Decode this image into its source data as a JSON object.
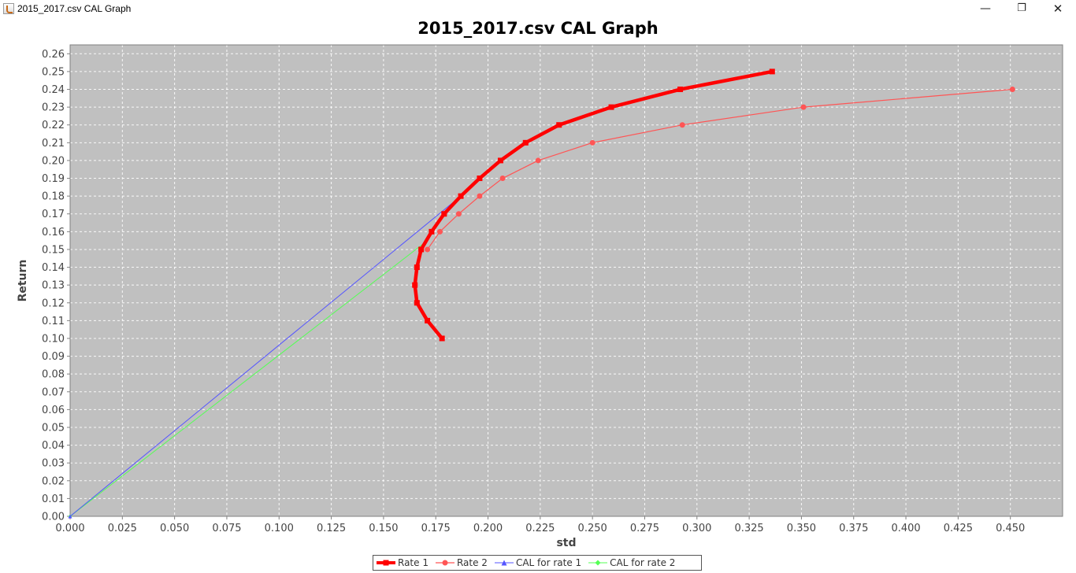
{
  "window": {
    "title": "2015_2017.csv CAL Graph",
    "minimize_glyph": "—",
    "maximize_glyph": "❐",
    "close_glyph": "✕"
  },
  "chart_data": {
    "type": "line",
    "title": "2015_2017.csv CAL Graph",
    "xlabel": "std",
    "ylabel": "Return",
    "xlim": [
      0,
      0.475
    ],
    "ylim": [
      0,
      0.265
    ],
    "xticks": [
      "0.000",
      "0.025",
      "0.050",
      "0.075",
      "0.100",
      "0.125",
      "0.150",
      "0.175",
      "0.200",
      "0.225",
      "0.250",
      "0.275",
      "0.300",
      "0.325",
      "0.350",
      "0.375",
      "0.400",
      "0.425",
      "0.450"
    ],
    "yticks": [
      "0.00",
      "0.01",
      "0.02",
      "0.03",
      "0.04",
      "0.05",
      "0.06",
      "0.07",
      "0.08",
      "0.09",
      "0.10",
      "0.11",
      "0.12",
      "0.13",
      "0.14",
      "0.15",
      "0.16",
      "0.17",
      "0.18",
      "0.19",
      "0.20",
      "0.21",
      "0.22",
      "0.23",
      "0.24",
      "0.25",
      "0.26"
    ],
    "grid": true,
    "background": "#c0c0c0",
    "legend_position": "bottom-center",
    "series": [
      {
        "name": "Rate 1",
        "color": "#ff0000",
        "marker": "square",
        "x": [
          0.178,
          0.171,
          0.166,
          0.165,
          0.166,
          0.168,
          0.173,
          0.179,
          0.187,
          0.196,
          0.206,
          0.218,
          0.234,
          0.259,
          0.292,
          0.336
        ],
        "y": [
          0.1,
          0.11,
          0.12,
          0.13,
          0.14,
          0.15,
          0.16,
          0.17,
          0.18,
          0.19,
          0.2,
          0.21,
          0.22,
          0.23,
          0.24,
          0.25
        ]
      },
      {
        "name": "Rate 2",
        "color": "#ff5555",
        "marker": "circle",
        "x": [
          0.171,
          0.177,
          0.186,
          0.196,
          0.207,
          0.224,
          0.25,
          0.293,
          0.351,
          0.451
        ],
        "y": [
          0.15,
          0.16,
          0.17,
          0.18,
          0.19,
          0.2,
          0.21,
          0.22,
          0.23,
          0.24
        ]
      },
      {
        "name": "CAL for rate 1",
        "color": "#5555ff",
        "marker": "triangle",
        "x": [
          0.0,
          0.187
        ],
        "y": [
          0.0,
          0.18
        ]
      },
      {
        "name": "CAL for rate 2",
        "color": "#55ff55",
        "marker": "diamond",
        "x": [
          0.0,
          0.171
        ],
        "y": [
          0.0,
          0.155
        ]
      }
    ]
  }
}
